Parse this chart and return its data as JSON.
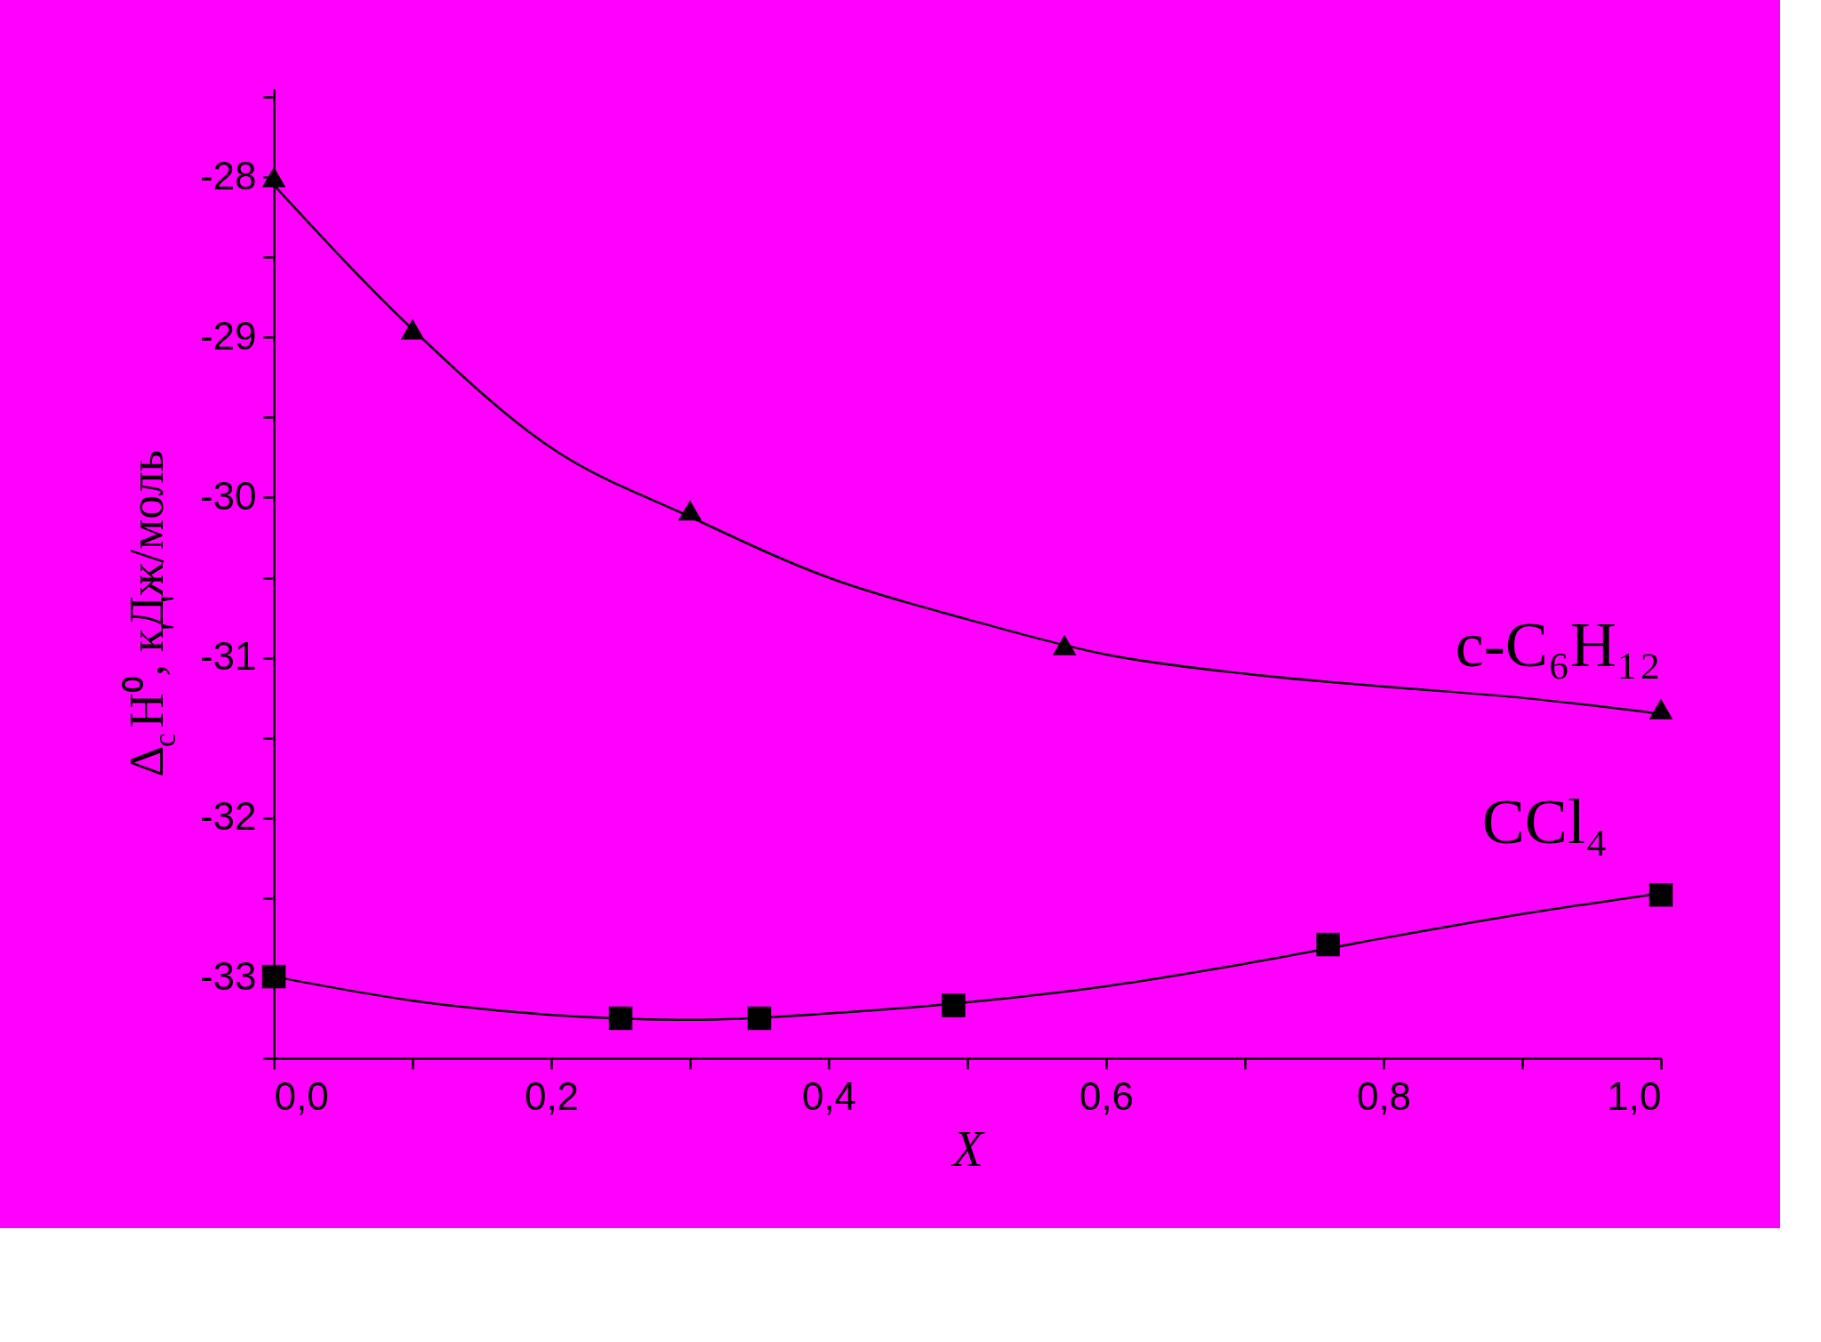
{
  "chart_data": {
    "type": "scatter",
    "xlabel": "X",
    "ylabel": "Δ$_{c}$H⁰, кДж/моль",
    "xlim": [
      0,
      1.0
    ],
    "ylim": [
      -33.5,
      -27.45
    ],
    "xticks": [
      {
        "value": 0,
        "label": "0,0"
      },
      {
        "value": 0.1,
        "label": null
      },
      {
        "value": 0.2,
        "label": "0,2"
      },
      {
        "value": 0.3,
        "label": null
      },
      {
        "value": 0.4,
        "label": "0,4"
      },
      {
        "value": 0.5,
        "label": null
      },
      {
        "value": 0.6,
        "label": "0,6"
      },
      {
        "value": 0.7,
        "label": null
      },
      {
        "value": 0.8,
        "label": "0,8"
      },
      {
        "value": 0.9,
        "label": null
      },
      {
        "value": 1.0,
        "label": "1,0"
      }
    ],
    "yticks": [
      {
        "value": -33.5,
        "label": null
      },
      -33,
      {
        "value": -32.5,
        "label": null
      },
      -32,
      {
        "value": -31.5,
        "label": null
      },
      -31,
      {
        "value": -30.5,
        "label": null
      },
      -30,
      {
        "value": -29.5,
        "label": null
      },
      -29,
      {
        "value": -28.5,
        "label": null
      },
      -28,
      {
        "value": -27.5,
        "label": null
      }
    ],
    "grid": false,
    "legend": false,
    "series": [
      {
        "name": "c-C₆H₁₂",
        "type": "scatter",
        "marker": "triangle",
        "color": "#000000",
        "x": [
          0,
          0.1,
          0.3,
          0.57,
          1.0
        ],
        "values": [
          -28.0,
          -28.95,
          -30.08,
          -30.92,
          -31.32
        ]
      },
      {
        "name": "CCl₄",
        "type": "scatter",
        "marker": "square",
        "color": "#000000",
        "x": [
          0,
          0.25,
          0.35,
          0.49,
          0.76,
          1.0
        ],
        "values": [
          -32.99,
          -33.25,
          -33.25,
          -33.17,
          -32.79,
          -32.48
        ]
      },
      {
        "type": "line",
        "marker": "none",
        "line_style": "solid",
        "color": "#000000",
        "x": [
          0,
          0.1,
          0.2,
          0.3,
          0.4,
          0.5,
          0.6,
          0.7,
          0.8,
          0.9,
          1.0
        ],
        "values": [
          -28.05,
          -28.95,
          -29.69,
          -30.12,
          -30.5,
          -30.76,
          -30.98,
          -31.1,
          -31.18,
          -31.25,
          -31.35
        ]
      },
      {
        "type": "line",
        "marker": "none",
        "line_style": "solid",
        "color": "#000000",
        "x": [
          0,
          0.1,
          0.2,
          0.3,
          0.4,
          0.5,
          0.6,
          0.7,
          0.8,
          0.9,
          1.0
        ],
        "values": [
          -32.99,
          -33.14,
          -33.23,
          -33.26,
          -33.22,
          -33.15,
          -33.05,
          -32.91,
          -32.75,
          -32.6,
          -32.47
        ]
      }
    ]
  }
}
